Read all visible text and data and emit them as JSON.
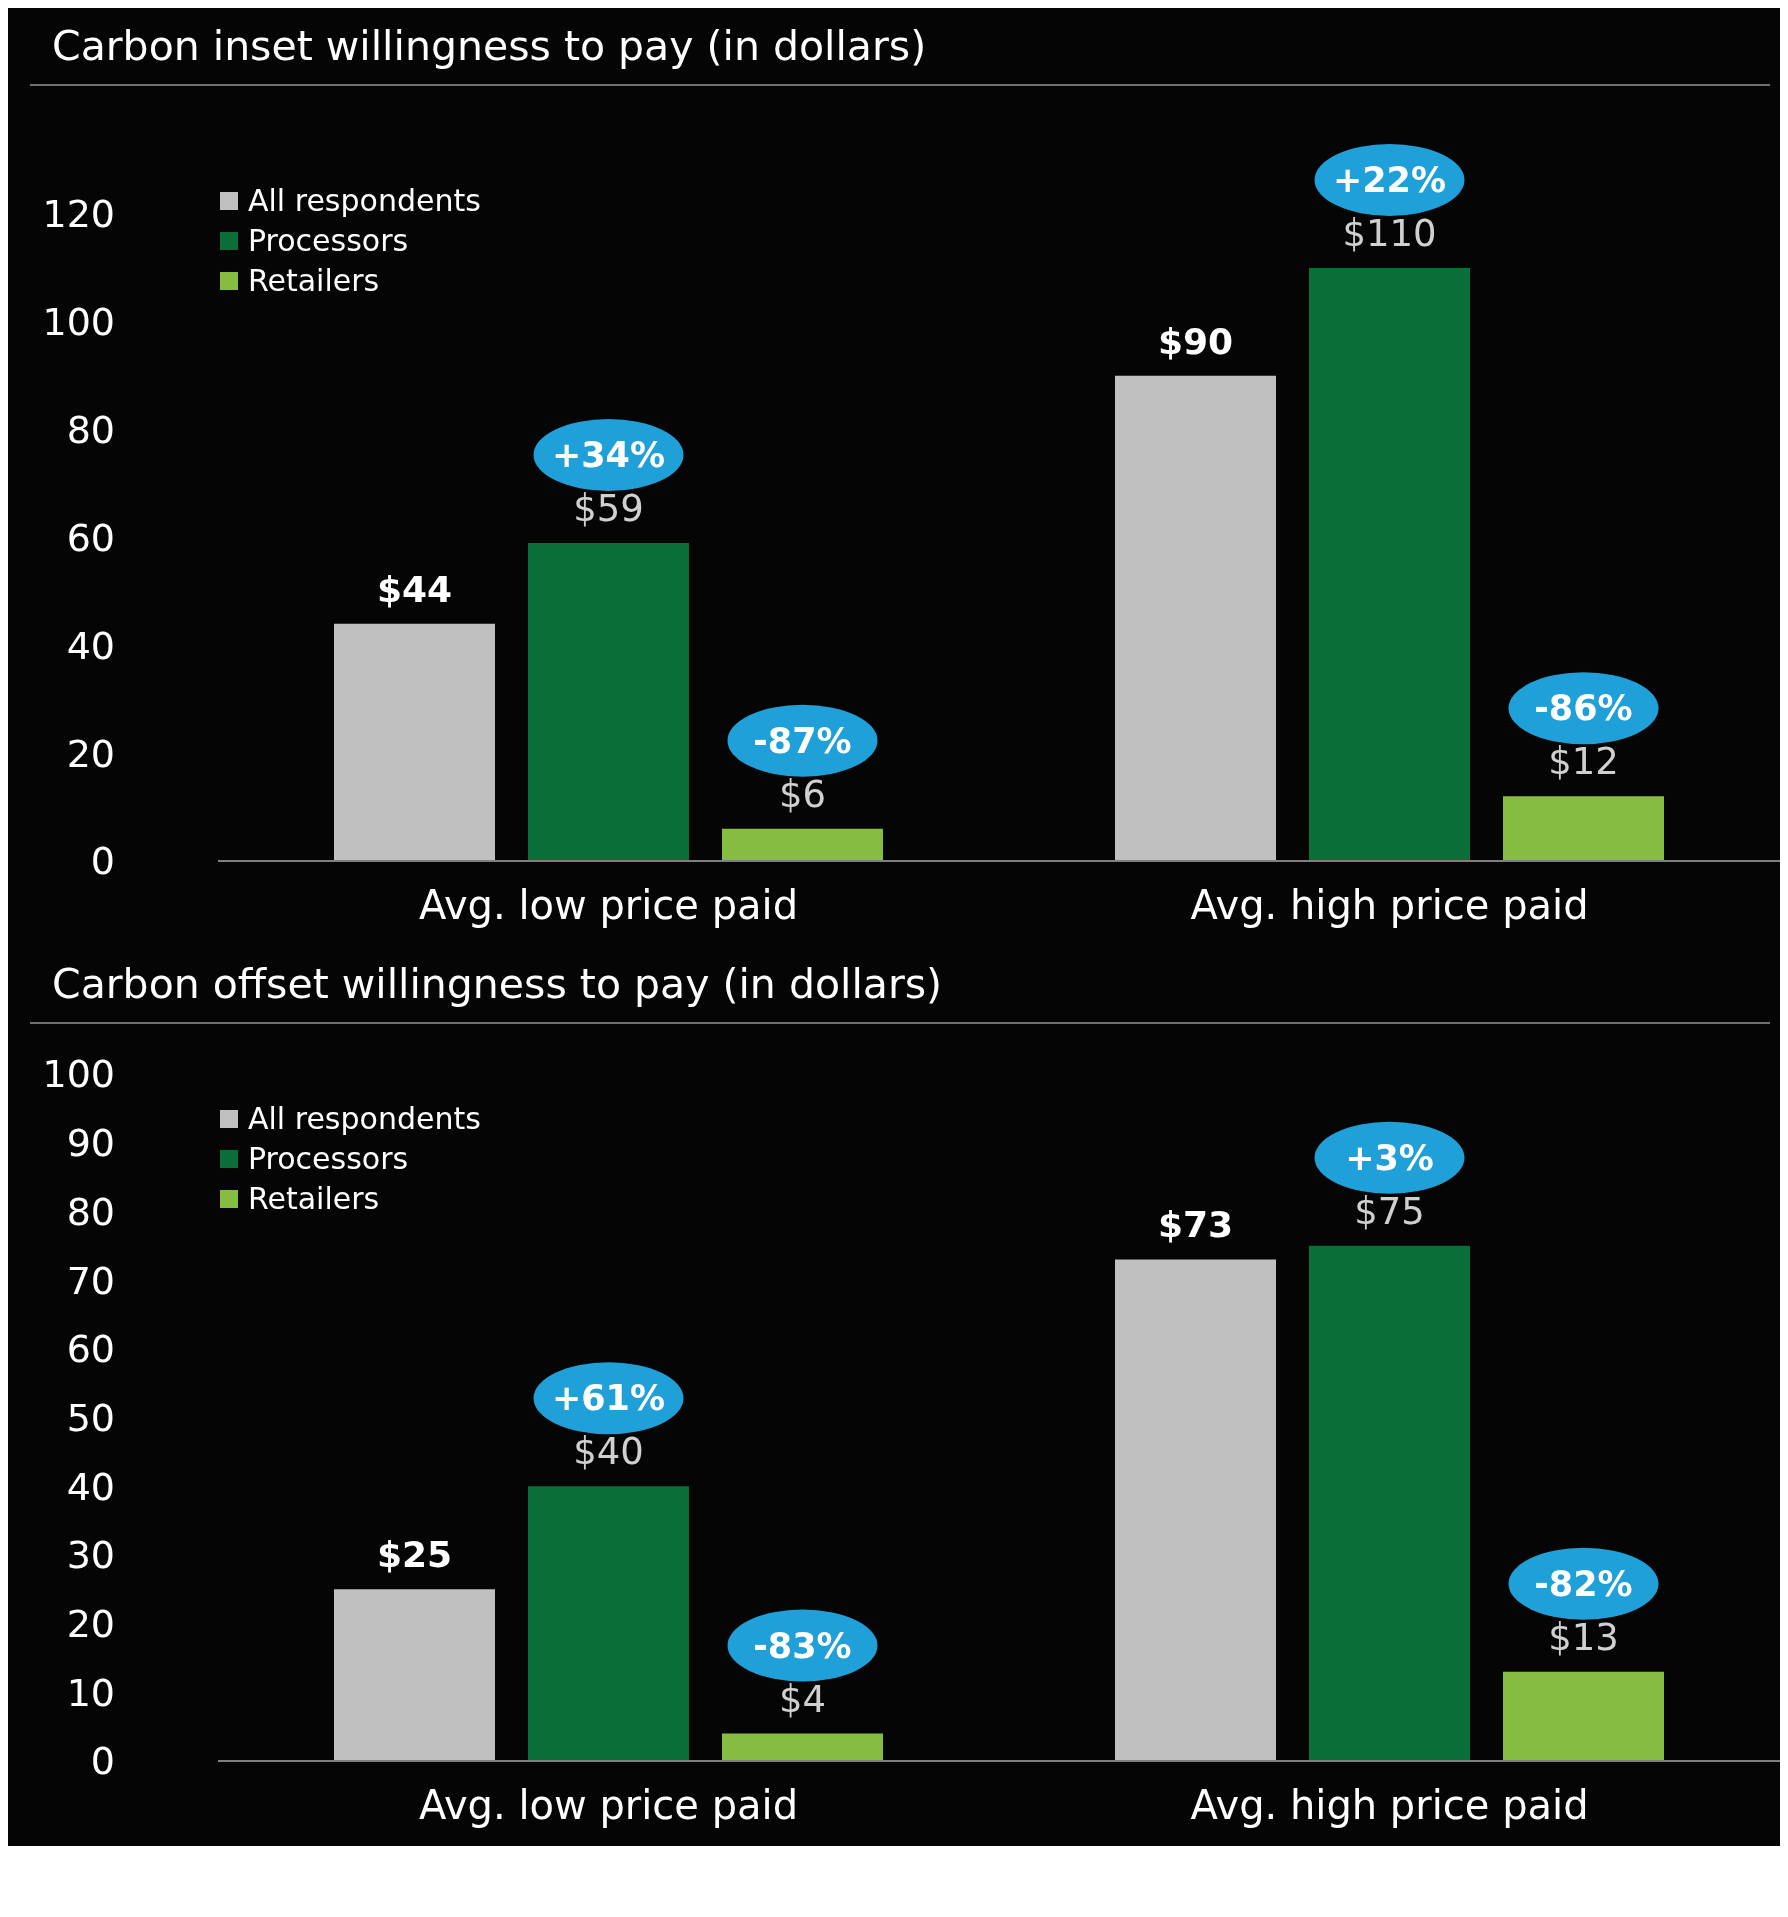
{
  "chart_data": [
    {
      "type": "bar",
      "title": "Carbon inset willingness to pay (in dollars)",
      "categories": [
        "Avg. low price paid",
        "Avg. high price paid"
      ],
      "series": [
        {
          "name": "All respondents",
          "color": "#c0c0c0",
          "values": [
            44,
            90
          ],
          "value_labels": [
            "$44",
            "$90"
          ]
        },
        {
          "name": "Processors",
          "color": "#0a6e38",
          "values": [
            59,
            110
          ],
          "value_labels": [
            "$59",
            "$110"
          ]
        },
        {
          "name": "Retailers",
          "color": "#86bc40",
          "values": [
            6,
            12
          ],
          "value_labels": [
            "$6",
            "$12"
          ]
        }
      ],
      "annotations": [
        "+34%",
        "-87%",
        "+22%",
        "-86%"
      ],
      "ylim": [
        0,
        120
      ],
      "yticks": [
        0,
        20,
        40,
        60,
        80,
        100,
        120
      ],
      "grid": false,
      "legend": "top left"
    },
    {
      "type": "bar",
      "title": "Carbon offset willingness to pay (in dollars)",
      "categories": [
        "Avg. low price paid",
        "Avg. high price paid"
      ],
      "series": [
        {
          "name": "All respondents",
          "color": "#c0c0c0",
          "values": [
            25,
            73
          ],
          "value_labels": [
            "$25",
            "$73"
          ]
        },
        {
          "name": "Processors",
          "color": "#0a6e38",
          "values": [
            40,
            75
          ],
          "value_labels": [
            "$40",
            "$75"
          ]
        },
        {
          "name": "Retailers",
          "color": "#86bc40",
          "values": [
            4,
            13
          ],
          "value_labels": [
            "$4",
            "$13"
          ]
        }
      ],
      "annotations": [
        "+61%",
        "-83%",
        "+3%",
        "-82%"
      ],
      "ylim": [
        0,
        100
      ],
      "yticks": [
        0,
        10,
        20,
        30,
        40,
        50,
        60,
        70,
        80,
        90,
        100
      ],
      "grid": false,
      "legend": "top left"
    }
  ]
}
